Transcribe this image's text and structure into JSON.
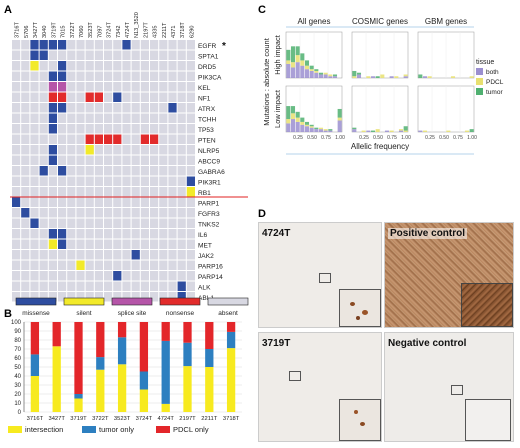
{
  "panels": {
    "a": "A",
    "b": "B",
    "c": "C",
    "d": "D"
  },
  "colors": {
    "missense": "#2e4da0",
    "silent": "#f2ea2a",
    "splice": "#b555a8",
    "nonsense": "#e22b2b",
    "absent": "#d8d8e2",
    "both": "#9b8fd0",
    "pdcl": "#e8e070",
    "tumor": "#4fb070",
    "intersection": "#f7ea1f",
    "tumor_only": "#2d7fc0",
    "pdcl_only": "#e3262a"
  },
  "heatmap": {
    "samples": [
      "3716T",
      "5706",
      "3427T",
      "3040",
      "3719T",
      "7015",
      "3722T",
      "7060",
      "3523T",
      "7097",
      "3724T",
      "7342",
      "4724T",
      "N13_3520",
      "2197T",
      "4335",
      "2211T",
      "4371",
      "3718T",
      "6290"
    ],
    "genes": [
      "EGFR",
      "SPTA1",
      "DRD5",
      "PIK3CA",
      "KEL",
      "NF1",
      "ATRX",
      "TCHH",
      "TP53",
      "PTEN",
      "NLRP5",
      "ABCC9",
      "GABRA6",
      "PIK3R1",
      "RB1",
      "PARP1",
      "FGFR3",
      "TNKS2",
      "IL6",
      "MET",
      "JAK2",
      "PARP16",
      "PARP14",
      "ALK",
      "ABL1"
    ],
    "egfr_mark": "*",
    "cells": [
      [
        0,
        2,
        "missense"
      ],
      [
        0,
        3,
        "missense"
      ],
      [
        0,
        4,
        "missense"
      ],
      [
        0,
        5,
        "missense"
      ],
      [
        0,
        12,
        "missense"
      ],
      [
        1,
        2,
        "missense"
      ],
      [
        1,
        3,
        "missense"
      ],
      [
        2,
        2,
        "silent"
      ],
      [
        2,
        5,
        "missense"
      ],
      [
        3,
        4,
        "missense"
      ],
      [
        3,
        5,
        "missense"
      ],
      [
        4,
        4,
        "splice"
      ],
      [
        4,
        5,
        "splice"
      ],
      [
        5,
        4,
        "nonsense"
      ],
      [
        5,
        5,
        "nonsense"
      ],
      [
        5,
        8,
        "nonsense"
      ],
      [
        5,
        9,
        "nonsense"
      ],
      [
        5,
        11,
        "missense"
      ],
      [
        6,
        4,
        "missense"
      ],
      [
        6,
        5,
        "missense"
      ],
      [
        6,
        17,
        "missense"
      ],
      [
        7,
        4,
        "missense"
      ],
      [
        8,
        4,
        "missense"
      ],
      [
        9,
        8,
        "nonsense"
      ],
      [
        9,
        9,
        "nonsense"
      ],
      [
        9,
        10,
        "nonsense"
      ],
      [
        9,
        11,
        "nonsense"
      ],
      [
        9,
        14,
        "nonsense"
      ],
      [
        9,
        15,
        "nonsense"
      ],
      [
        10,
        4,
        "missense"
      ],
      [
        10,
        8,
        "silent"
      ],
      [
        11,
        4,
        "missense"
      ],
      [
        12,
        3,
        "missense"
      ],
      [
        12,
        5,
        "missense"
      ],
      [
        13,
        19,
        "missense"
      ],
      [
        14,
        19,
        "silent"
      ],
      [
        15,
        0,
        "missense"
      ],
      [
        16,
        1,
        "missense"
      ],
      [
        17,
        2,
        "missense"
      ],
      [
        18,
        4,
        "missense"
      ],
      [
        18,
        5,
        "missense"
      ],
      [
        19,
        4,
        "silent"
      ],
      [
        19,
        5,
        "missense"
      ],
      [
        20,
        13,
        "missense"
      ],
      [
        21,
        7,
        "silent"
      ],
      [
        22,
        11,
        "missense"
      ],
      [
        23,
        18,
        "missense"
      ],
      [
        24,
        18,
        "missense"
      ]
    ]
  },
  "legend": [
    "missense",
    "silent",
    "splice site",
    "nonsense",
    "absent"
  ],
  "chart_data": [
    {
      "type": "bar",
      "title": "",
      "categories": [
        "3716T",
        "3427T",
        "3719T",
        "3722T",
        "3523T",
        "3724T",
        "4724T",
        "2197T",
        "2211T",
        "3718T"
      ],
      "series": [
        {
          "name": "intersection",
          "values": [
            40,
            73,
            15,
            47,
            53,
            25,
            9,
            51,
            50,
            71
          ]
        },
        {
          "name": "tumor only",
          "values": [
            24,
            0,
            5,
            14,
            30,
            20,
            70,
            26,
            20,
            18
          ]
        },
        {
          "name": "PDCL only",
          "values": [
            36,
            27,
            80,
            39,
            17,
            55,
            21,
            23,
            30,
            11
          ]
        }
      ],
      "ylim": [
        0,
        100
      ],
      "yticks": [
        0,
        10,
        20,
        30,
        40,
        50,
        60,
        70,
        80,
        90,
        100
      ],
      "legend_labels": [
        "intersection",
        "tumor only",
        "PDCL only"
      ],
      "legend": "bottom"
    },
    {
      "type": "bar",
      "title": "",
      "column_titles": [
        "All genes",
        "COSMIC genes",
        "GBM genes"
      ],
      "row_titles": [
        "High impact",
        "Low impact"
      ],
      "ylabel": "Mutations : absolute count",
      "xlabel": "Allelic frequency",
      "xticks": [
        "0.25",
        "0.50",
        "0.75",
        "1.00"
      ],
      "legend_title": "tissue",
      "legend_labels": [
        "both",
        "PDCL",
        "tumor"
      ],
      "legend": "right"
    }
  ],
  "ihc": {
    "top_label": "4724T",
    "bottom_label": "3719T",
    "positive": "Positive control",
    "negative": "Negative  control"
  }
}
